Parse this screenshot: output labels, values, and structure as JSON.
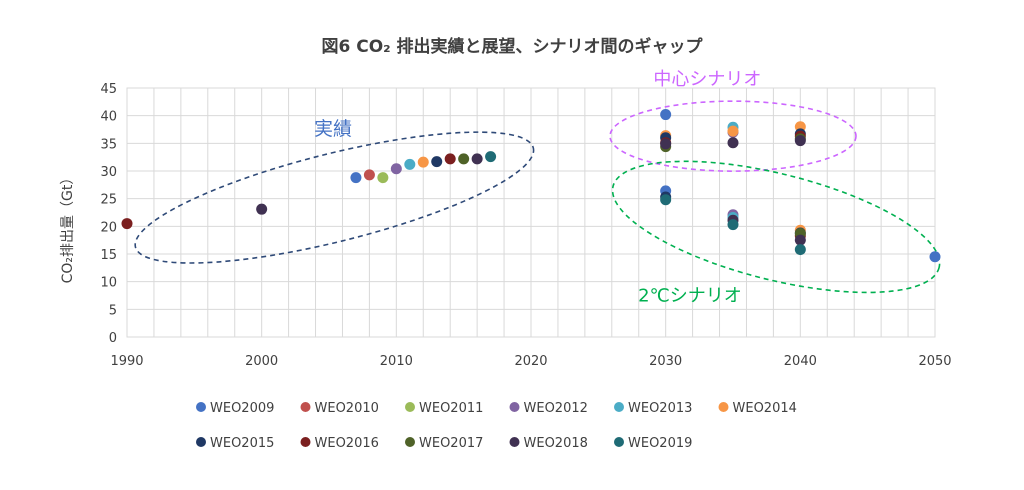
{
  "chart_data": {
    "type": "scatter",
    "title": "図6 CO₂ 排出実績と展望、シナリオ間のギャップ",
    "ylabel": "CO₂排出量（Gt）",
    "xlabel": "",
    "xlim": [
      1990,
      2050
    ],
    "ylim": [
      0,
      45
    ],
    "x_ticks": [
      1990,
      2000,
      2010,
      2020,
      2030,
      2040,
      2050
    ],
    "y_ticks": [
      0,
      5,
      10,
      15,
      20,
      25,
      30,
      35,
      40,
      45
    ],
    "grid": "both",
    "legend_position": "bottom",
    "annotations": [
      {
        "text": "実績",
        "color": "#4472C4",
        "ellipse_style": "dashed",
        "ellipse_color": "#2F4A78"
      },
      {
        "text": "中心シナリオ",
        "color": "#CC66FF",
        "ellipse_style": "dashed",
        "ellipse_color": "#CC66FF"
      },
      {
        "text": "2℃シナリオ",
        "color": "#00B050",
        "ellipse_style": "dashed",
        "ellipse_color": "#00B050"
      }
    ],
    "series": [
      {
        "name": "WEO2009",
        "color": "#4472C4",
        "points": [
          [
            2007,
            28.8
          ],
          [
            2030,
            40.2
          ],
          [
            2030,
            26.4
          ],
          [
            2050,
            14.5
          ]
        ]
      },
      {
        "name": "WEO2010",
        "color": "#C0504D",
        "points": [
          [
            2008,
            29.3
          ]
        ]
      },
      {
        "name": "WEO2011",
        "color": "#9BBB59",
        "points": [
          [
            2009,
            28.8
          ]
        ]
      },
      {
        "name": "WEO2012",
        "color": "#8064A2",
        "points": [
          [
            2010,
            30.4
          ],
          [
            2035,
            37.0
          ],
          [
            2035,
            22.1
          ]
        ]
      },
      {
        "name": "WEO2013",
        "color": "#4BACC6",
        "points": [
          [
            2011,
            31.2
          ],
          [
            2035,
            37.9
          ],
          [
            2035,
            21.6
          ]
        ]
      },
      {
        "name": "WEO2014",
        "color": "#F79646",
        "points": [
          [
            2012,
            31.6
          ],
          [
            2030,
            36.4
          ],
          [
            2035,
            37.2
          ],
          [
            2040,
            38.0
          ],
          [
            2040,
            19.3
          ]
        ]
      },
      {
        "name": "WEO2015",
        "color": "#1F3864",
        "points": [
          [
            2013,
            31.7
          ],
          [
            2030,
            36.0
          ],
          [
            2030,
            25.3
          ],
          [
            2040,
            36.7
          ],
          [
            2040,
            18.8
          ]
        ]
      },
      {
        "name": "WEO2016",
        "color": "#7B1F1F",
        "points": [
          [
            1990,
            20.5
          ],
          [
            2014,
            32.2
          ],
          [
            2030,
            35.1
          ],
          [
            2040,
            36.3
          ],
          [
            2040,
            18.3
          ]
        ]
      },
      {
        "name": "WEO2017",
        "color": "#4F6228",
        "points": [
          [
            2015,
            32.2
          ],
          [
            2030,
            34.4
          ],
          [
            2040,
            35.8
          ],
          [
            2040,
            18.7
          ]
        ]
      },
      {
        "name": "WEO2018",
        "color": "#403152",
        "points": [
          [
            2000,
            23.1
          ],
          [
            2016,
            32.2
          ],
          [
            2030,
            34.9
          ],
          [
            2035,
            35.1
          ],
          [
            2035,
            21.1
          ],
          [
            2040,
            35.5
          ],
          [
            2040,
            17.5
          ]
        ]
      },
      {
        "name": "WEO2019",
        "color": "#1F6B75",
        "points": [
          [
            2017,
            32.6
          ],
          [
            2030,
            24.8
          ],
          [
            2035,
            20.3
          ],
          [
            2040,
            15.8
          ]
        ]
      }
    ]
  }
}
